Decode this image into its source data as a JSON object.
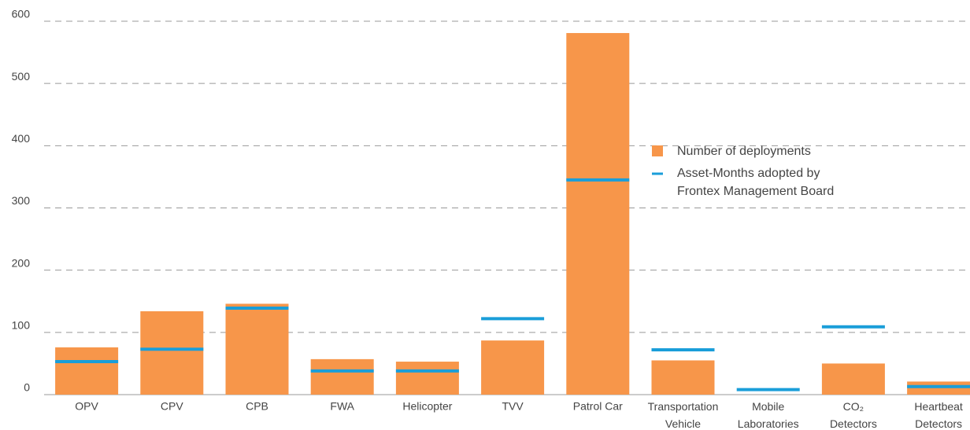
{
  "chart_data": {
    "type": "bar",
    "categories": [
      "OPV",
      "CPV",
      "CPB",
      "FWA",
      "Helicopter",
      "TVV",
      "Patrol Car",
      "Transportation Vehicle",
      "Mobile Laboratories",
      "CO₂ Detectors",
      "Heartbeat Detectors"
    ],
    "series": [
      {
        "name": "Number of deployments",
        "color": "#f7964a",
        "values": [
          76,
          134,
          146,
          57,
          53,
          87,
          581,
          55,
          0,
          50,
          21
        ]
      },
      {
        "name": "Asset-Months adopted by Frontex Management Board",
        "color": "#1a9ed9",
        "values": [
          53,
          73,
          139,
          38,
          38,
          122,
          345,
          72,
          8,
          109,
          13
        ]
      }
    ],
    "ylim": [
      0,
      600
    ],
    "yticks": [
      0,
      100,
      200,
      300,
      400,
      500,
      600
    ],
    "grid": true
  }
}
